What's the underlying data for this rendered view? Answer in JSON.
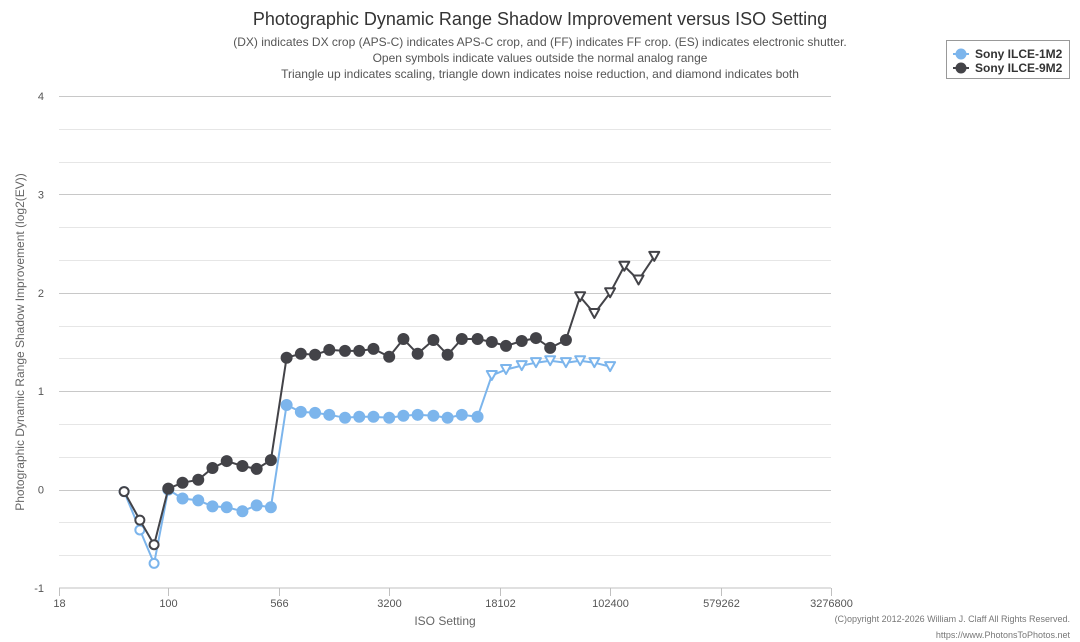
{
  "chart_data": {
    "type": "line",
    "title": "Photographic Dynamic Range Shadow Improvement versus ISO Setting",
    "subtitle_lines": [
      "(DX) indicates DX crop (APS-C) indicates APS-C crop, and (FF) indicates FF crop. (ES) indicates electronic shutter.",
      "Open symbols indicate values outside the normal analog range",
      "Triangle up indicates scaling, triangle down indicates noise reduction, and diamond indicates both"
    ],
    "xlabel": "ISO Setting",
    "ylabel": "Photographic Dynamic Range Shadow Improvement (log2(EV))",
    "x_scale": "log",
    "xlim": [
      18,
      3276800
    ],
    "ylim": [
      -1,
      4
    ],
    "x_ticks": [
      {
        "value": 18,
        "label": "18"
      },
      {
        "value": 100,
        "label": "100"
      },
      {
        "value": 566,
        "label": "566"
      },
      {
        "value": 3200,
        "label": "3200"
      },
      {
        "value": 18102,
        "label": "18102"
      },
      {
        "value": 102400,
        "label": "102400"
      },
      {
        "value": 579262,
        "label": "579262"
      },
      {
        "value": 3276800,
        "label": "3276800"
      }
    ],
    "y_ticks": [
      {
        "value": -1,
        "label": "-1"
      },
      {
        "value": 0,
        "label": "0"
      },
      {
        "value": 1,
        "label": "1"
      },
      {
        "value": 2,
        "label": "2"
      },
      {
        "value": 3,
        "label": "3"
      },
      {
        "value": 4,
        "label": "4"
      }
    ],
    "grid": true,
    "legend_position": "top-right",
    "series": [
      {
        "name": "Sony ILCE-1M2",
        "color": "#7cb5ec",
        "points": [
          {
            "x": 50,
            "y": -0.02,
            "marker": "open-circle"
          },
          {
            "x": 64,
            "y": -0.41,
            "marker": "open-circle"
          },
          {
            "x": 80,
            "y": -0.75,
            "marker": "open-circle"
          },
          {
            "x": 100,
            "y": 0.0,
            "marker": "circle"
          },
          {
            "x": 125,
            "y": -0.09,
            "marker": "circle"
          },
          {
            "x": 160,
            "y": -0.11,
            "marker": "circle"
          },
          {
            "x": 200,
            "y": -0.17,
            "marker": "circle"
          },
          {
            "x": 250,
            "y": -0.18,
            "marker": "circle"
          },
          {
            "x": 320,
            "y": -0.22,
            "marker": "circle"
          },
          {
            "x": 400,
            "y": -0.16,
            "marker": "circle"
          },
          {
            "x": 500,
            "y": -0.18,
            "marker": "circle"
          },
          {
            "x": 640,
            "y": 0.86,
            "marker": "circle"
          },
          {
            "x": 800,
            "y": 0.79,
            "marker": "circle"
          },
          {
            "x": 1000,
            "y": 0.78,
            "marker": "circle"
          },
          {
            "x": 1250,
            "y": 0.76,
            "marker": "circle"
          },
          {
            "x": 1600,
            "y": 0.73,
            "marker": "circle"
          },
          {
            "x": 2000,
            "y": 0.74,
            "marker": "circle"
          },
          {
            "x": 2500,
            "y": 0.74,
            "marker": "circle"
          },
          {
            "x": 3200,
            "y": 0.73,
            "marker": "circle"
          },
          {
            "x": 4000,
            "y": 0.75,
            "marker": "circle"
          },
          {
            "x": 5000,
            "y": 0.76,
            "marker": "circle"
          },
          {
            "x": 6400,
            "y": 0.75,
            "marker": "circle"
          },
          {
            "x": 8000,
            "y": 0.73,
            "marker": "circle"
          },
          {
            "x": 10000,
            "y": 0.76,
            "marker": "circle"
          },
          {
            "x": 12800,
            "y": 0.74,
            "marker": "circle"
          },
          {
            "x": 16000,
            "y": 1.16,
            "marker": "open-triangle-down"
          },
          {
            "x": 20000,
            "y": 1.22,
            "marker": "open-triangle-down"
          },
          {
            "x": 25600,
            "y": 1.26,
            "marker": "open-triangle-down"
          },
          {
            "x": 32000,
            "y": 1.29,
            "marker": "open-triangle-down"
          },
          {
            "x": 40000,
            "y": 1.31,
            "marker": "open-triangle-down"
          },
          {
            "x": 51200,
            "y": 1.29,
            "marker": "open-triangle-down"
          },
          {
            "x": 64000,
            "y": 1.31,
            "marker": "open-triangle-down"
          },
          {
            "x": 80000,
            "y": 1.29,
            "marker": "open-triangle-down"
          },
          {
            "x": 102400,
            "y": 1.25,
            "marker": "open-triangle-down"
          }
        ]
      },
      {
        "name": "Sony ILCE-9M2",
        "color": "#434348",
        "points": [
          {
            "x": 50,
            "y": -0.02,
            "marker": "open-circle"
          },
          {
            "x": 64,
            "y": -0.31,
            "marker": "open-circle"
          },
          {
            "x": 80,
            "y": -0.56,
            "marker": "open-circle"
          },
          {
            "x": 100,
            "y": 0.01,
            "marker": "circle"
          },
          {
            "x": 125,
            "y": 0.07,
            "marker": "circle"
          },
          {
            "x": 160,
            "y": 0.1,
            "marker": "circle"
          },
          {
            "x": 200,
            "y": 0.22,
            "marker": "circle"
          },
          {
            "x": 250,
            "y": 0.29,
            "marker": "circle"
          },
          {
            "x": 320,
            "y": 0.24,
            "marker": "circle"
          },
          {
            "x": 400,
            "y": 0.21,
            "marker": "circle"
          },
          {
            "x": 500,
            "y": 0.3,
            "marker": "circle"
          },
          {
            "x": 640,
            "y": 1.34,
            "marker": "circle"
          },
          {
            "x": 800,
            "y": 1.38,
            "marker": "circle"
          },
          {
            "x": 1000,
            "y": 1.37,
            "marker": "circle"
          },
          {
            "x": 1250,
            "y": 1.42,
            "marker": "circle"
          },
          {
            "x": 1600,
            "y": 1.41,
            "marker": "circle"
          },
          {
            "x": 2000,
            "y": 1.41,
            "marker": "circle"
          },
          {
            "x": 2500,
            "y": 1.43,
            "marker": "circle"
          },
          {
            "x": 3200,
            "y": 1.35,
            "marker": "circle"
          },
          {
            "x": 4000,
            "y": 1.53,
            "marker": "circle"
          },
          {
            "x": 5000,
            "y": 1.38,
            "marker": "circle"
          },
          {
            "x": 6400,
            "y": 1.52,
            "marker": "circle"
          },
          {
            "x": 8000,
            "y": 1.37,
            "marker": "circle"
          },
          {
            "x": 10000,
            "y": 1.53,
            "marker": "circle"
          },
          {
            "x": 12800,
            "y": 1.53,
            "marker": "circle"
          },
          {
            "x": 16000,
            "y": 1.5,
            "marker": "circle"
          },
          {
            "x": 20000,
            "y": 1.46,
            "marker": "circle"
          },
          {
            "x": 25600,
            "y": 1.51,
            "marker": "circle"
          },
          {
            "x": 32000,
            "y": 1.54,
            "marker": "circle"
          },
          {
            "x": 40000,
            "y": 1.44,
            "marker": "circle"
          },
          {
            "x": 51200,
            "y": 1.52,
            "marker": "circle"
          },
          {
            "x": 64000,
            "y": 1.96,
            "marker": "open-triangle-down"
          },
          {
            "x": 80000,
            "y": 1.79,
            "marker": "open-triangle-down"
          },
          {
            "x": 102400,
            "y": 2.0,
            "marker": "open-triangle-down"
          },
          {
            "x": 128000,
            "y": 2.27,
            "marker": "open-triangle-down"
          },
          {
            "x": 160000,
            "y": 2.13,
            "marker": "open-triangle-down"
          },
          {
            "x": 204800,
            "y": 2.37,
            "marker": "open-triangle-down"
          }
        ]
      }
    ]
  },
  "footer": {
    "copyright": "(C)opyright 2012-2026 William J. Claff All Rights Reserved.",
    "url": "https://www.PhotonsToPhotos.net"
  }
}
